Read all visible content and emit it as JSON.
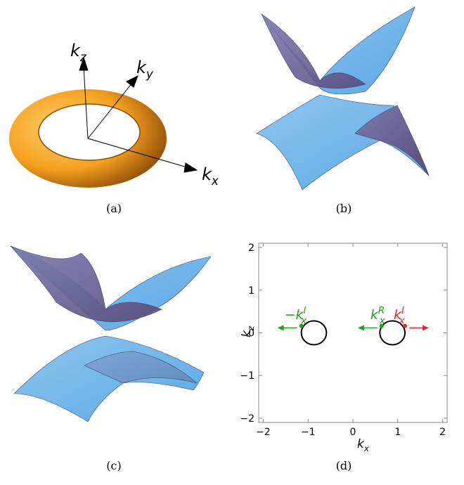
{
  "captions": [
    "(a)",
    "(b)",
    "(c)",
    "(d)"
  ],
  "panel_a": {
    "axis_labels": [
      {
        "base": "k",
        "sub": "z"
      },
      {
        "base": "k",
        "sub": "y"
      },
      {
        "base": "k",
        "sub": "x"
      }
    ]
  },
  "chart_data": {
    "type": "scatter",
    "xlabel": {
      "base": "k",
      "sub": "x"
    },
    "ylabel": {
      "base": "k",
      "sub": "z"
    },
    "xlim": [
      -2.1,
      2.1
    ],
    "ylim": [
      -2.1,
      2.1
    ],
    "xticks": [
      {
        "value": -2,
        "label": "−2"
      },
      {
        "value": -1,
        "label": "−1"
      },
      0,
      1,
      2
    ],
    "yticks": [
      {
        "value": -2,
        "label": "−2"
      },
      {
        "value": -1,
        "label": "−1"
      },
      0,
      1,
      2
    ],
    "circles": [
      {
        "cx": -0.87,
        "cy": 0,
        "r": 0.28
      },
      {
        "cx": 0.88,
        "cy": 0,
        "r": 0.28
      }
    ],
    "points": [
      {
        "x": -1.15,
        "y": 0.16,
        "color": "#22a022",
        "direction": "left",
        "label": {
          "prefix": "−",
          "base": "k",
          "sub": "x",
          "sup": "I"
        }
      },
      {
        "x": 0.64,
        "y": 0.16,
        "color": "#22a022",
        "direction": "left",
        "label": {
          "base": "k",
          "sub": "x",
          "sup": "R"
        }
      },
      {
        "x": 1.16,
        "y": 0.16,
        "color": "#e8262b",
        "direction": "right",
        "label": {
          "base": "k",
          "sub": "x",
          "sup": "I"
        }
      }
    ]
  }
}
